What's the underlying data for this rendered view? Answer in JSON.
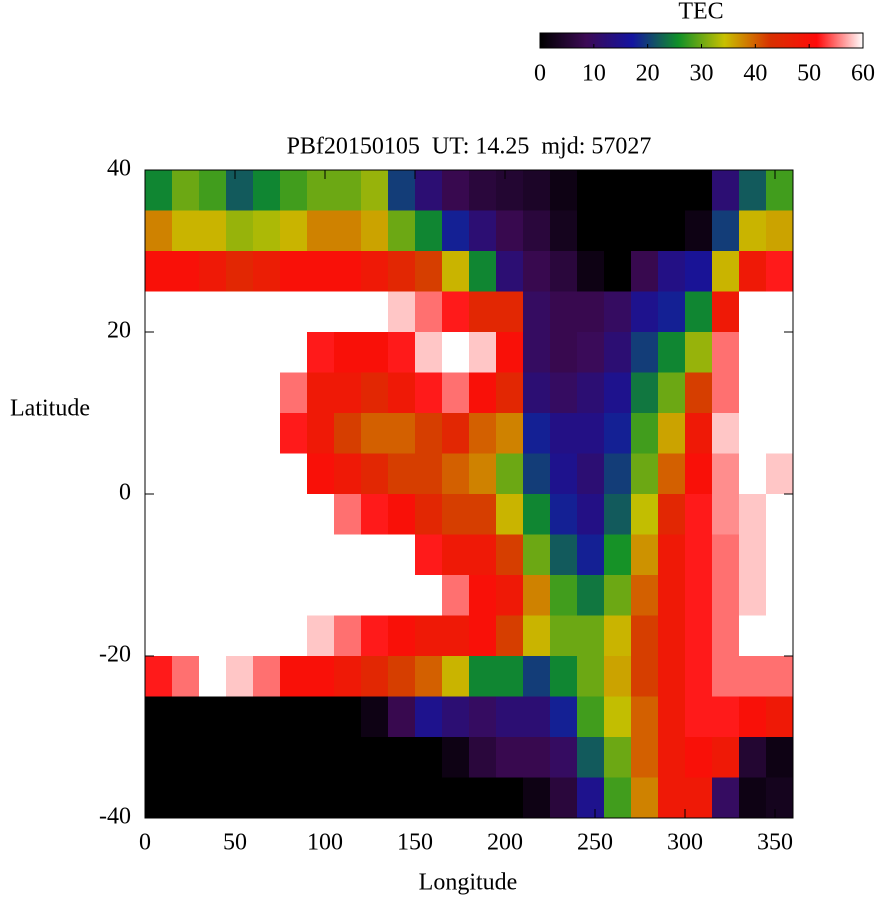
{
  "chart_data": {
    "type": "heatmap",
    "title": "PBf20150105  UT: 14.25  mjd: 57027",
    "x_label": "Longitude",
    "y_label": "Latitude",
    "colorbar_label": "TEC",
    "xlim": [
      0,
      360
    ],
    "ylim": [
      -40,
      40
    ],
    "xticks": [
      0,
      50,
      100,
      150,
      200,
      250,
      300,
      350
    ],
    "yticks": [
      -40,
      -20,
      0,
      20,
      40
    ],
    "clim": [
      0,
      60
    ],
    "cticks": [
      0,
      10,
      20,
      30,
      40,
      50,
      60
    ],
    "colormap": [
      "#000000",
      "#3c0a55",
      "#1414a0",
      "#109028",
      "#c8c000",
      "#d83000",
      "#ff0a0a",
      "#ffffff"
    ],
    "x": [
      7.5,
      22.5,
      37.5,
      52.5,
      67.5,
      82.5,
      97.5,
      112.5,
      127.5,
      142.5,
      157.5,
      172.5,
      187.5,
      202.5,
      217.5,
      232.5,
      247.5,
      262.5,
      277.5,
      292.5,
      307.5,
      322.5,
      337.5,
      352.5
    ],
    "y": [
      37.5,
      32.5,
      27.5,
      22.5,
      17.5,
      12.5,
      7.5,
      2.5,
      -2.5,
      -7.5,
      -12.5,
      -17.5,
      -22.5,
      -27.5,
      -32.5,
      -37.5
    ],
    "values": [
      [
        25,
        30,
        28,
        22,
        25,
        28,
        30,
        30,
        32,
        20,
        12,
        8,
        6,
        5,
        4,
        2,
        0,
        0,
        0,
        0,
        0,
        12,
        22,
        28
      ],
      [
        38,
        35,
        35,
        32,
        33,
        35,
        38,
        38,
        36,
        30,
        25,
        18,
        12,
        8,
        6,
        3,
        0,
        0,
        0,
        0,
        2,
        20,
        35,
        36
      ],
      [
        50,
        50,
        48,
        45,
        47,
        50,
        50,
        50,
        48,
        45,
        42,
        35,
        25,
        12,
        8,
        6,
        2,
        0,
        8,
        14,
        16,
        35,
        48,
        52
      ],
      [
        60,
        60,
        60,
        60,
        60,
        60,
        60,
        60,
        60,
        58,
        55,
        52,
        45,
        45,
        10,
        8,
        8,
        10,
        15,
        18,
        25,
        48,
        60,
        60
      ],
      [
        60,
        60,
        60,
        60,
        60,
        60,
        52,
        50,
        50,
        52,
        58,
        60,
        58,
        50,
        10,
        8,
        9,
        12,
        20,
        25,
        32,
        55,
        60,
        60
      ],
      [
        60,
        60,
        60,
        60,
        60,
        55,
        48,
        48,
        45,
        48,
        52,
        55,
        50,
        45,
        12,
        10,
        12,
        15,
        24,
        30,
        42,
        55,
        60,
        60
      ],
      [
        60,
        60,
        60,
        60,
        60,
        52,
        48,
        42,
        40,
        40,
        42,
        45,
        40,
        38,
        18,
        14,
        14,
        18,
        28,
        36,
        48,
        58,
        60,
        60
      ],
      [
        60,
        60,
        60,
        60,
        60,
        60,
        50,
        48,
        45,
        42,
        42,
        40,
        38,
        30,
        20,
        15,
        12,
        20,
        30,
        40,
        50,
        56,
        60,
        58
      ],
      [
        60,
        60,
        60,
        60,
        60,
        60,
        60,
        55,
        52,
        50,
        45,
        42,
        42,
        35,
        25,
        18,
        14,
        22,
        34,
        45,
        52,
        56,
        58,
        60
      ],
      [
        60,
        60,
        60,
        60,
        60,
        60,
        60,
        60,
        60,
        60,
        52,
        48,
        48,
        42,
        30,
        22,
        18,
        26,
        37,
        48,
        52,
        55,
        58,
        60
      ],
      [
        60,
        60,
        60,
        60,
        60,
        60,
        60,
        60,
        60,
        60,
        60,
        55,
        50,
        48,
        38,
        28,
        24,
        30,
        40,
        48,
        52,
        55,
        58,
        60
      ],
      [
        60,
        60,
        60,
        60,
        60,
        60,
        58,
        55,
        52,
        50,
        48,
        48,
        50,
        42,
        35,
        30,
        30,
        35,
        42,
        48,
        52,
        55,
        60,
        60
      ],
      [
        52,
        55,
        60,
        58,
        55,
        50,
        50,
        48,
        45,
        42,
        40,
        35,
        25,
        25,
        20,
        25,
        30,
        36,
        42,
        48,
        52,
        55,
        55,
        55
      ],
      [
        0,
        0,
        0,
        0,
        0,
        0,
        0,
        0,
        2,
        8,
        15,
        12,
        10,
        12,
        12,
        18,
        28,
        34,
        40,
        48,
        52,
        52,
        50,
        48
      ],
      [
        0,
        0,
        0,
        0,
        0,
        0,
        0,
        0,
        0,
        0,
        0,
        2,
        6,
        8,
        8,
        10,
        22,
        30,
        40,
        48,
        50,
        48,
        5,
        2
      ],
      [
        0,
        0,
        0,
        0,
        0,
        0,
        0,
        0,
        0,
        0,
        0,
        0,
        0,
        0,
        2,
        6,
        15,
        28,
        38,
        48,
        48,
        10,
        2,
        3
      ]
    ]
  }
}
